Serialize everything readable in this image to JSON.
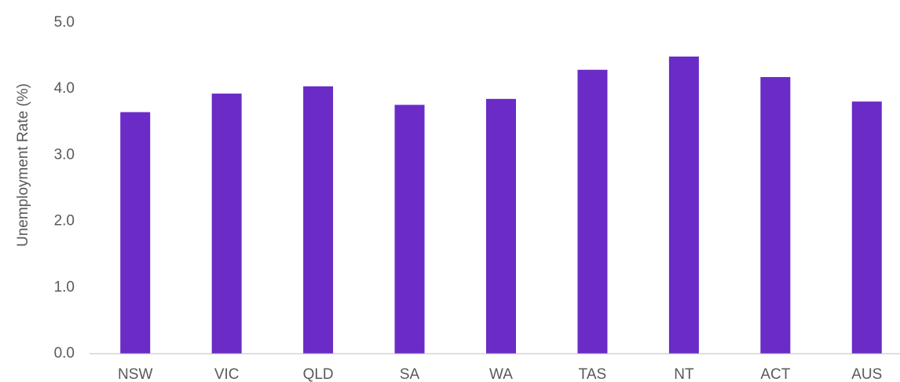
{
  "chart_data": {
    "type": "bar",
    "y_label": "Unemployment Rate (%)",
    "categories": [
      "NSW",
      "VIC",
      "QLD",
      "SA",
      "WA",
      "TAS",
      "NT",
      "ACT",
      "AUS"
    ],
    "values": [
      3.65,
      3.93,
      4.04,
      3.76,
      3.85,
      4.29,
      4.49,
      4.18,
      3.81
    ],
    "color": "#6a2bc6",
    "ylim": [
      0,
      5
    ],
    "yticks": [
      {
        "value": 0,
        "label": "0.0"
      },
      {
        "value": 1,
        "label": "1.0"
      },
      {
        "value": 2,
        "label": "2.0"
      },
      {
        "value": 3,
        "label": "3.0"
      },
      {
        "value": 4,
        "label": "4.0"
      },
      {
        "value": 5,
        "label": "5.0"
      }
    ],
    "grid": false
  }
}
